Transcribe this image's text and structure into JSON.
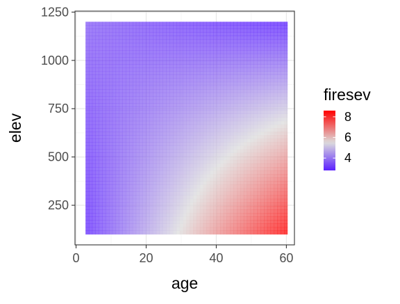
{
  "chart_data": {
    "type": "heatmap",
    "title": "",
    "xlabel": "age",
    "ylabel": "elev",
    "xlim": [
      -0.3,
      62.3
    ],
    "ylim": [
      45,
      1255
    ],
    "x_ticks": [
      0,
      20,
      40,
      60
    ],
    "y_ticks": [
      250,
      500,
      750,
      1000,
      1250
    ],
    "x_tick_labels": [
      "0",
      "20",
      "40",
      "60"
    ],
    "y_tick_labels": [
      "250",
      "500",
      "750",
      "1000",
      "1250"
    ],
    "grid": true,
    "data_extent": {
      "x": [
        2.7,
        60.3
      ],
      "y": [
        100,
        1200
      ]
    },
    "grid_resolution": {
      "nx": 60,
      "ny": 60
    },
    "surface_model": {
      "description_of_values": "estimated firesev at grid corners",
      "corners": {
        "age_min_elev_min": 2.9,
        "age_max_elev_min": 8.6,
        "age_min_elev_max": 3.6,
        "age_max_elev_max": 2.8
      }
    },
    "legend": {
      "title": "firesev",
      "position": "right",
      "range": [
        2.8,
        8.6
      ],
      "ticks": [
        4,
        6,
        8
      ],
      "tick_labels": [
        "4",
        "6",
        "8"
      ],
      "colors": {
        "low": "#5b20ff",
        "mid": "#dcdcdc",
        "high": "#ff0000",
        "midpoint": 5.5
      }
    },
    "fill_alpha": 0.75
  }
}
